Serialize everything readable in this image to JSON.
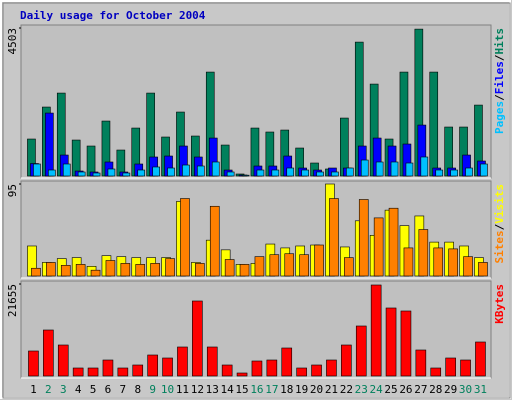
{
  "chart_data": [
    {
      "type": "bar",
      "title": "Daily usage for October 2004",
      "separator": "/",
      "ylim": [
        0,
        4503
      ],
      "yticks": [
        4503
      ],
      "series": [
        {
          "name": "Hits",
          "color": "#00805c",
          "values": [
            1125,
            2098,
            2523,
            1094,
            912,
            1672,
            790,
            1459,
            2523,
            1186,
            1946,
            1216,
            3162,
            942,
            61,
            1459,
            1338,
            1398,
            851,
            395,
            213,
            1763,
            4074,
            2797,
            1125,
            3162,
            4469,
            3162,
            1490,
            1490,
            2158
          ]
        },
        {
          "name": "Files",
          "color": "#0000ff",
          "values": [
            380,
            1915,
            638,
            152,
            122,
            426,
            122,
            365,
            578,
            608,
            912,
            578,
            1155,
            182,
            30,
            304,
            304,
            608,
            243,
            182,
            243,
            243,
            912,
            1155,
            912,
            973,
            1550,
            243,
            243,
            638,
            456
          ]
        },
        {
          "name": "Pages",
          "color": "#00c0ff",
          "values": [
            365,
            182,
            365,
            122,
            91,
            213,
            91,
            182,
            274,
            243,
            334,
            304,
            426,
            122,
            25,
            182,
            182,
            243,
            182,
            122,
            122,
            243,
            486,
            426,
            426,
            395,
            578,
            182,
            182,
            243,
            365
          ]
        }
      ]
    },
    {
      "type": "bar",
      "separator": "/",
      "ylim": [
        0,
        95
      ],
      "yticks": [
        95
      ],
      "series": [
        {
          "name": "Visits",
          "color": "#ffff00",
          "values": [
            31,
            14,
            18,
            19,
            10,
            21,
            20,
            19,
            19,
            19,
            77,
            14,
            37,
            27,
            12,
            13,
            33,
            29,
            31,
            32,
            95,
            30,
            57,
            42,
            68,
            52,
            62,
            35,
            35,
            31,
            19
          ]
        },
        {
          "name": "Sites",
          "color": "#ff8000",
          "values": [
            8,
            14,
            11,
            12,
            6,
            16,
            13,
            12,
            13,
            18,
            80,
            13,
            72,
            17,
            12,
            20,
            22,
            23,
            22,
            32,
            80,
            19,
            79,
            60,
            70,
            29,
            48,
            29,
            28,
            20,
            14
          ]
        }
      ]
    },
    {
      "type": "bar",
      "ylim": [
        0,
        21655
      ],
      "yticks": [
        21655
      ],
      "categories": [
        "1",
        "2",
        "3",
        "4",
        "5",
        "6",
        "7",
        "8",
        "9",
        "10",
        "11",
        "12",
        "13",
        "14",
        "15",
        "16",
        "17",
        "18",
        "19",
        "20",
        "21",
        "22",
        "23",
        "24",
        "25",
        "26",
        "27",
        "28",
        "29",
        "30",
        "31"
      ],
      "category_colors": [
        "#000000",
        "#00805c",
        "#00805c",
        "#000000",
        "#000000",
        "#000000",
        "#000000",
        "#000000",
        "#00805c",
        "#00805c",
        "#000000",
        "#000000",
        "#000000",
        "#000000",
        "#000000",
        "#00805c",
        "#00805c",
        "#000000",
        "#000000",
        "#000000",
        "#000000",
        "#000000",
        "#00805c",
        "#00805c",
        "#000000",
        "#000000",
        "#000000",
        "#000000",
        "#000000",
        "#00805c",
        "#00805c"
      ],
      "series": [
        {
          "name": "KBytes",
          "color": "#ff0000",
          "values": [
            5885,
            10828,
            7297,
            1883,
            1883,
            3766,
            1883,
            2589,
            4943,
            4237,
            6827,
            17655,
            6827,
            2589,
            706,
            3531,
            3766,
            6591,
            1883,
            2589,
            3766,
            7297,
            11770,
            21421,
            16007,
            15301,
            6120,
            1883,
            4237,
            3766,
            8004
          ]
        }
      ]
    }
  ]
}
